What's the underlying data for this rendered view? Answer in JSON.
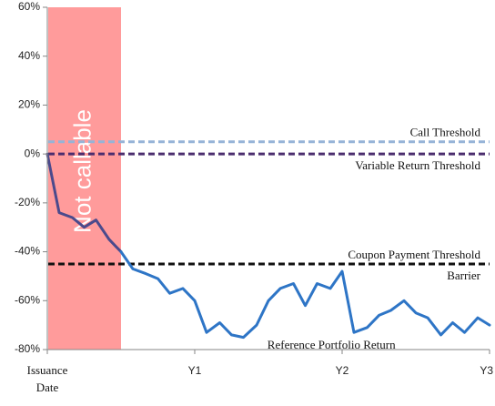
{
  "chart_data": {
    "type": "line",
    "title": "",
    "xlabel": "",
    "ylabel": "",
    "ylim": [
      -0.8,
      0.6
    ],
    "xlim": [
      0,
      3
    ],
    "grid": false,
    "y_ticks": [
      {
        "value": 0.6,
        "label": "60%"
      },
      {
        "value": 0.4,
        "label": "40%"
      },
      {
        "value": 0.2,
        "label": "20%"
      },
      {
        "value": 0.0,
        "label": "0%"
      },
      {
        "value": -0.2,
        "label": "-20%"
      },
      {
        "value": -0.4,
        "label": "-40%"
      },
      {
        "value": -0.6,
        "label": "-60%"
      },
      {
        "value": -0.8,
        "label": "-80%"
      }
    ],
    "x_ticks": [
      {
        "value": 0,
        "label": "Issuance Date",
        "lines": [
          "Issuance",
          "Date"
        ]
      },
      {
        "value": 1,
        "label": "Y1",
        "lines": [
          "Y1"
        ]
      },
      {
        "value": 2,
        "label": "Y2",
        "lines": [
          "Y2"
        ]
      },
      {
        "value": 3,
        "label": "Y3",
        "lines": [
          "Y3"
        ]
      }
    ],
    "shaded_region": {
      "label": "Not callable",
      "x_start": 0,
      "x_end": 0.5,
      "color": "#ff9b9b"
    },
    "thresholds": [
      {
        "label": "Call Threshold",
        "value": 0.05,
        "color": "#95b3d7",
        "label_side": "above"
      },
      {
        "label": "Variable Return Threshold",
        "value": 0.0,
        "color": "#4b2d6e",
        "label_side": "below"
      },
      {
        "label": "Coupon Payment Threshold",
        "value": -0.45,
        "color": "#111111",
        "label_side": "above"
      },
      {
        "label": "Barrier",
        "value": -0.45,
        "color": "#111111",
        "label_side": "below"
      }
    ],
    "series": [
      {
        "name": "Reference Portfolio Return",
        "color_before": "#4b4a8c",
        "color_after": "#2e75c6",
        "split_x": 0.5,
        "x": [
          0,
          0.08,
          0.17,
          0.25,
          0.33,
          0.42,
          0.5,
          0.58,
          0.67,
          0.75,
          0.83,
          0.92,
          1.0,
          1.08,
          1.17,
          1.25,
          1.33,
          1.42,
          1.5,
          1.58,
          1.67,
          1.75,
          1.83,
          1.92,
          2.0,
          2.08,
          2.17,
          2.25,
          2.33,
          2.42,
          2.5,
          2.58,
          2.67,
          2.75,
          2.83,
          2.92,
          3.0
        ],
        "values": [
          0.0,
          -0.24,
          -0.26,
          -0.3,
          -0.27,
          -0.35,
          -0.4,
          -0.47,
          -0.49,
          -0.51,
          -0.57,
          -0.55,
          -0.6,
          -0.73,
          -0.69,
          -0.74,
          -0.75,
          -0.7,
          -0.6,
          -0.55,
          -0.53,
          -0.62,
          -0.53,
          -0.55,
          -0.48,
          -0.73,
          -0.71,
          -0.66,
          -0.64,
          -0.6,
          -0.65,
          -0.67,
          -0.74,
          -0.69,
          -0.73,
          -0.67,
          -0.7
        ]
      }
    ],
    "series_label": "Reference Portfolio Return"
  }
}
